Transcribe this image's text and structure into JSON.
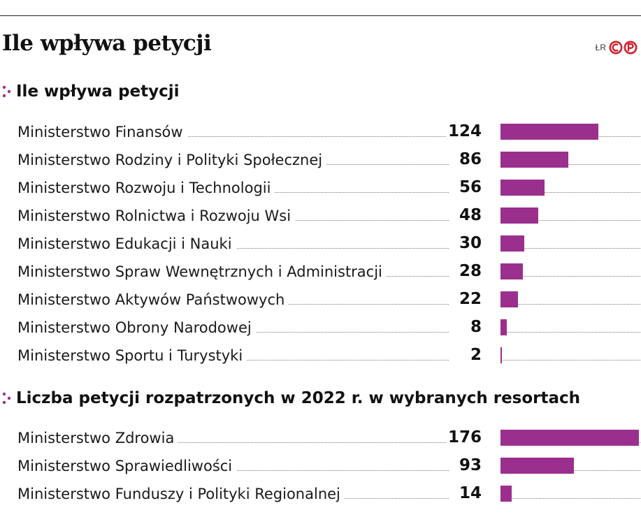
{
  "header": {
    "title": "Ile wpływa petycji",
    "credit_text": "ŁR",
    "bar_color": "#9b2f8e",
    "logo_color": "#d01f2d"
  },
  "chart_data": [
    {
      "type": "bar",
      "orientation": "horizontal",
      "title": "Ile wpływa petycji",
      "categories": [
        "Ministerstwo Finansów",
        "Ministerstwo Rodziny i Polityki Społecznej",
        "Ministerstwo Rozwoju i Technologii",
        "Ministerstwo Rolnictwa i Rozwoju Wsi",
        "Ministerstwo Edukacji i Nauki",
        "Ministerstwo Spraw Wewnętrznych i Administracji",
        "Ministerstwo Aktywów Państwowych",
        "Ministerstwo Obrony Narodowej",
        "Ministerstwo Sportu i Turystyki"
      ],
      "values": [
        124,
        86,
        56,
        48,
        30,
        28,
        22,
        8,
        2
      ],
      "xlim": [
        0,
        176
      ],
      "grid": false,
      "legend": "none"
    },
    {
      "type": "bar",
      "orientation": "horizontal",
      "title": "Liczba petycji rozpatrzonych w 2022 r. w wybranych resortach",
      "categories": [
        "Ministerstwo Zdrowia",
        "Ministerstwo Sprawiedliwości",
        "Ministerstwo Funduszy i Polityki Regionalnej"
      ],
      "values": [
        176,
        93,
        14
      ],
      "xlim": [
        0,
        176
      ],
      "grid": false,
      "legend": "none"
    }
  ]
}
